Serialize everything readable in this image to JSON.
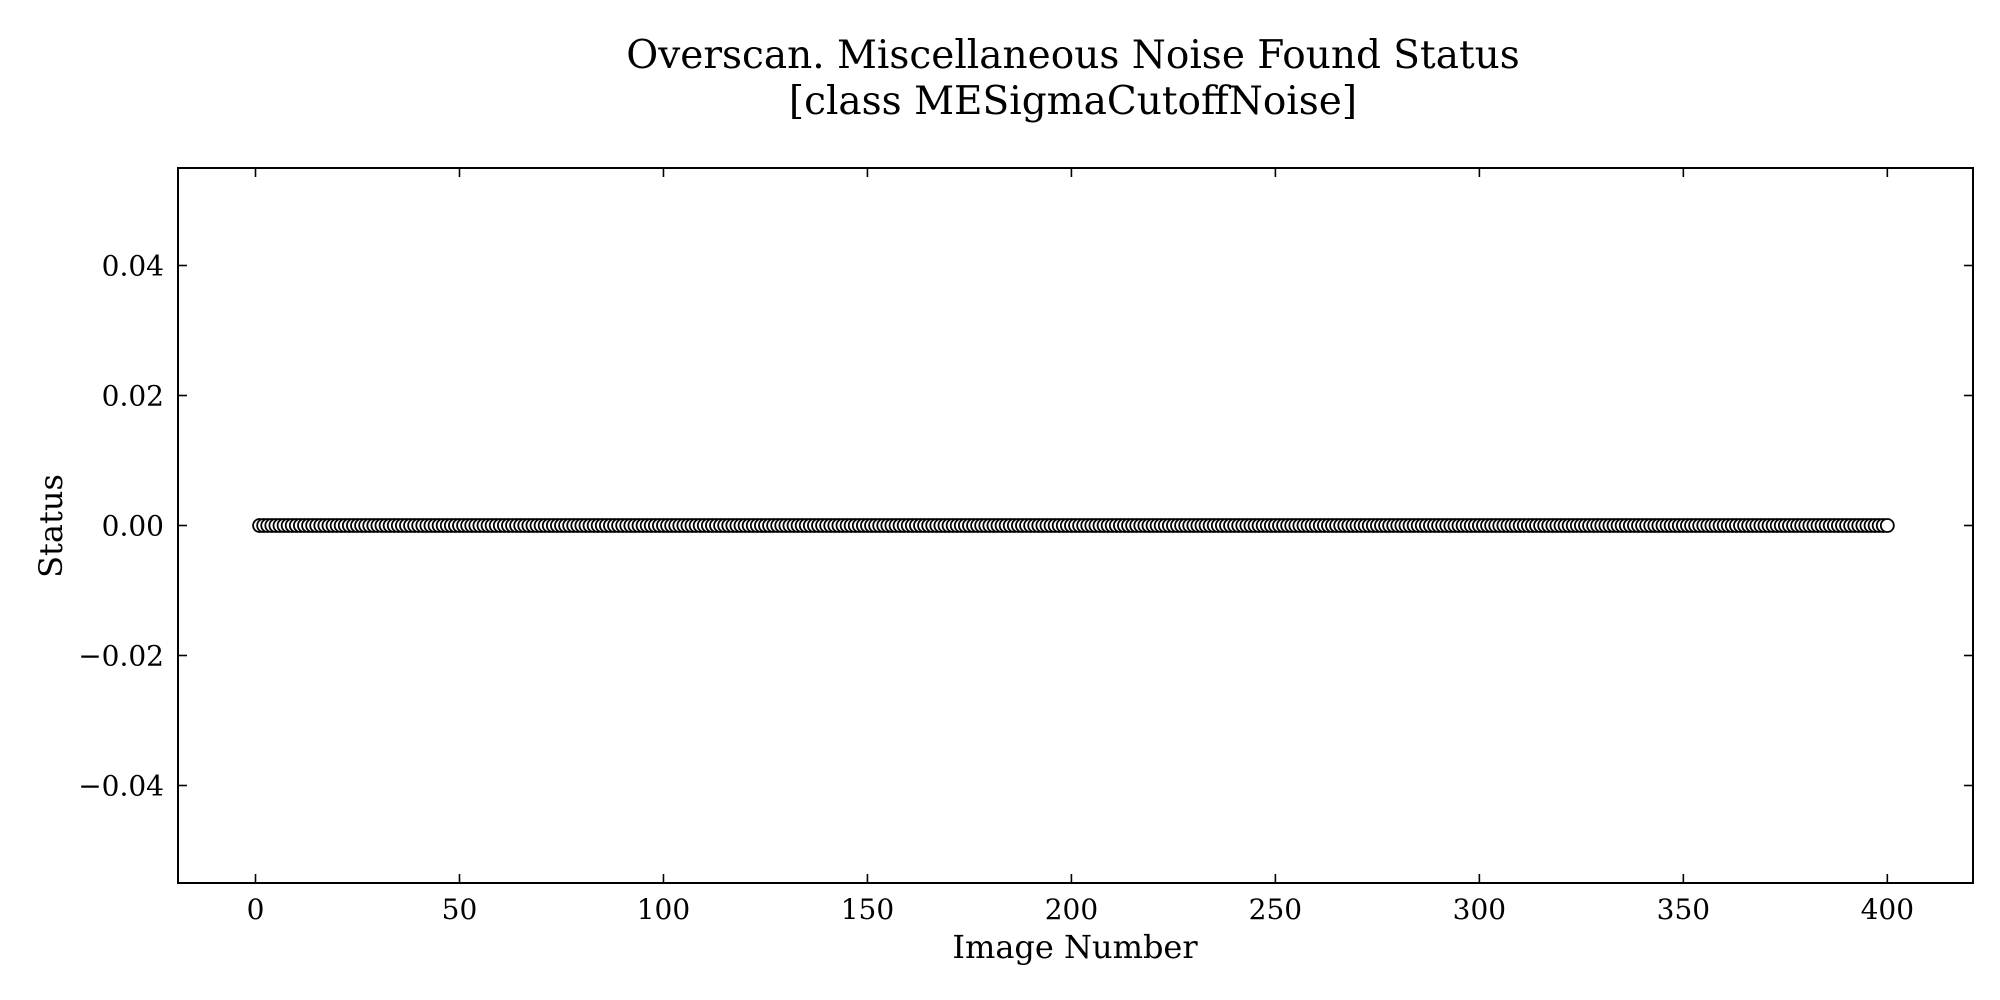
{
  "chart_data": {
    "type": "scatter",
    "title": "Overscan. Miscellaneous Noise Found Status",
    "subtitle": "[class MESigmaCutoffNoise]",
    "xlabel": "Image Number",
    "ylabel": "Status",
    "xlim": [
      -19,
      421
    ],
    "ylim": [
      -0.055,
      0.055
    ],
    "xticks": [
      0,
      50,
      100,
      150,
      200,
      250,
      300,
      350,
      400
    ],
    "xtick_labels": [
      "0",
      "50",
      "100",
      "150",
      "200",
      "250",
      "300",
      "350",
      "400"
    ],
    "yticks": [
      0.04,
      0.02,
      0.0,
      -0.02,
      -0.04
    ],
    "ytick_labels": [
      "0.04",
      "0.02",
      "0.00",
      "−0.02",
      "−0.04"
    ],
    "grid": false,
    "marker": "open-circle",
    "colors": {
      "marker_fill": "#ffffff",
      "marker_edge": "#000000"
    },
    "series": [
      {
        "x_start": 1,
        "x_end": 400,
        "x_step": 1,
        "y_constant": 0.0
      }
    ]
  }
}
